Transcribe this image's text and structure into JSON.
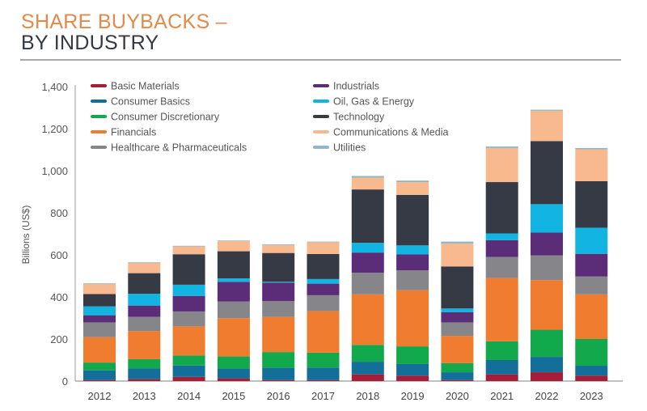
{
  "header": {
    "title_line1": "SHARE BUYBACKS –",
    "title_line2": "BY INDUSTRY"
  },
  "chart_data": {
    "type": "bar",
    "stacked": true,
    "title": "SHARE BUYBACKS – BY INDUSTRY",
    "xlabel": "",
    "ylabel": "Billions (US$)",
    "ylim": [
      0,
      1400
    ],
    "yticks": [
      0,
      200,
      400,
      600,
      800,
      1000,
      1200,
      1400
    ],
    "ytick_labels": [
      "0",
      "200",
      "400",
      "600",
      "800",
      "1,000",
      "1,200",
      "1,400"
    ],
    "grid": false,
    "legend_position": "top",
    "categories": [
      "2012",
      "2013",
      "2014",
      "2015",
      "2016",
      "2017",
      "2018",
      "2019",
      "2020",
      "2021",
      "2022",
      "2023"
    ],
    "series": [
      {
        "name": "Basic Materials",
        "color": "#a51d36",
        "values": [
          5,
          9,
          20,
          13,
          5,
          5,
          32,
          26,
          5,
          32,
          42,
          26
        ]
      },
      {
        "name": "Consumer Basics",
        "color": "#136f99",
        "values": [
          46,
          52,
          54,
          47,
          58,
          59,
          60,
          55,
          37,
          68,
          73,
          47
        ]
      },
      {
        "name": "Consumer Discretionary",
        "color": "#12a84c",
        "values": [
          37,
          43,
          48,
          57,
          75,
          71,
          80,
          84,
          43,
          89,
          129,
          127
        ]
      },
      {
        "name": "Financials",
        "color": "#f07c2f",
        "values": [
          121,
          134,
          138,
          182,
          167,
          198,
          240,
          267,
          130,
          301,
          236,
          212
        ]
      },
      {
        "name": "Healthcare & Pharmaceuticals",
        "color": "#86868a",
        "values": [
          70,
          67,
          71,
          79,
          75,
          75,
          103,
          94,
          64,
          100,
          117,
          85
        ]
      },
      {
        "name": "Industrials",
        "color": "#5b2d78",
        "values": [
          34,
          54,
          74,
          94,
          88,
          55,
          96,
          76,
          49,
          80,
          109,
          108
        ]
      },
      {
        "name": "Oil, Gas & Energy",
        "color": "#12b4e2",
        "values": [
          42,
          56,
          53,
          16,
          4,
          22,
          46,
          43,
          17,
          32,
          135,
          124
        ]
      },
      {
        "name": "Technology",
        "color": "#353a45",
        "values": [
          59,
          98,
          145,
          129,
          137,
          119,
          254,
          240,
          200,
          244,
          300,
          221
        ]
      },
      {
        "name": "Communications & Media",
        "color": "#f9b98e",
        "values": [
          48,
          49,
          37,
          48,
          38,
          56,
          56,
          61,
          109,
          162,
          144,
          152
        ]
      },
      {
        "name": "Utilities",
        "color": "#8fb6c9",
        "values": [
          3,
          3,
          3,
          3,
          3,
          3,
          8,
          7,
          9,
          7,
          5,
          6
        ]
      }
    ]
  }
}
